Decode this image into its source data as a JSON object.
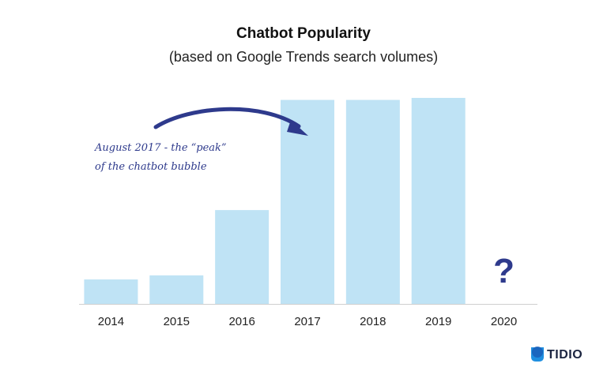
{
  "chart_data": {
    "type": "bar",
    "title": "Chatbot Popularity",
    "subtitle": "(based on Google Trends search volumes)",
    "categories": [
      "2014",
      "2015",
      "2016",
      "2017",
      "2018",
      "2019",
      "2020"
    ],
    "values": [
      12,
      14,
      46,
      100,
      100,
      101,
      null
    ],
    "ylim": [
      0,
      101
    ],
    "grid": false,
    "bar_color": "#bfe3f5",
    "accent_color": "#2e3a8c",
    "annotation": {
      "lines": [
        "August 2017 - the “peak”",
        "of the chatbot bubble"
      ],
      "target_category": "2017"
    },
    "unknown_marker": "?",
    "unknown_category": "2020"
  },
  "brand": {
    "name": "TIDIO",
    "icon": "tidio-logo-icon",
    "color": "#1b2440",
    "icon_color": "#1f8fe0"
  }
}
